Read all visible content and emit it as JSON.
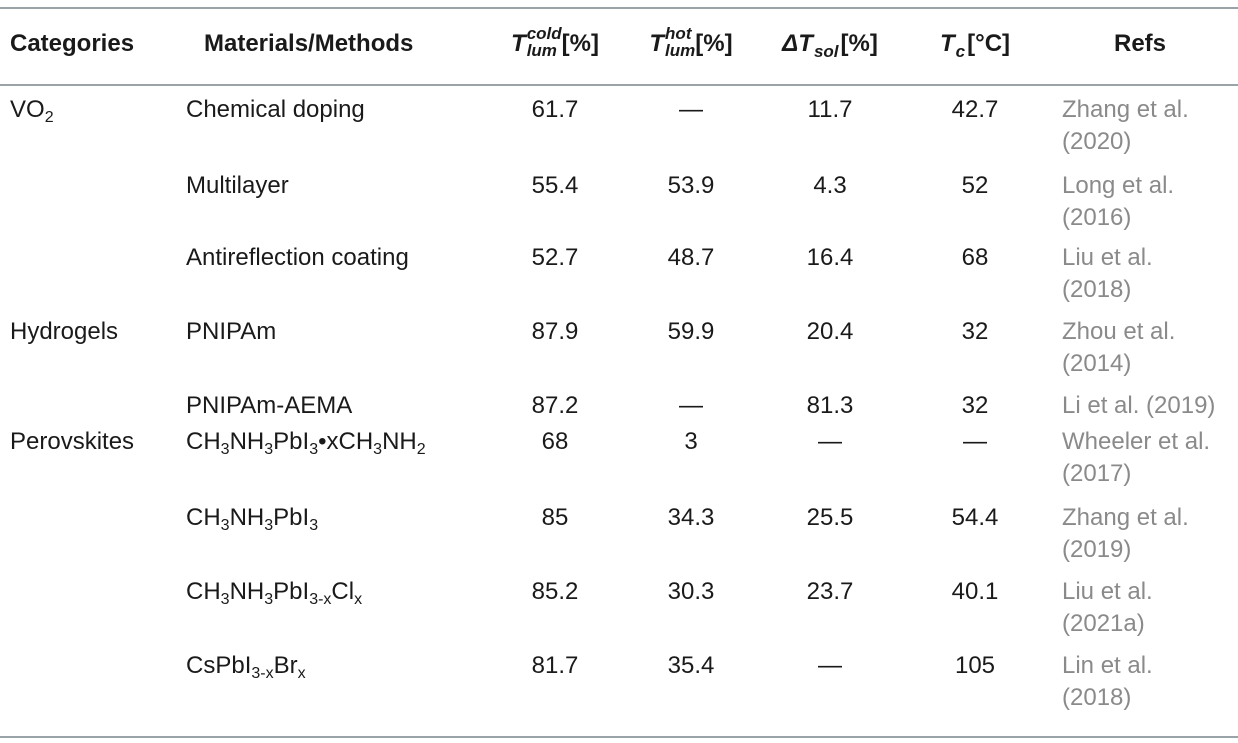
{
  "headers": {
    "categories": "Categories",
    "materials": "Materials/Methods",
    "tlum_cold": {
      "symbol": "T",
      "sup": "cold",
      "sub": "lum",
      "unit": "[%]"
    },
    "tlum_hot": {
      "symbol": "T",
      "sup": "hot",
      "sub": "lum",
      "unit": "[%]"
    },
    "dtsol": {
      "symbol": "ΔT",
      "sub": "sol",
      "unit": "[%]"
    },
    "tc": {
      "symbol": "T",
      "sub": "c",
      "unit": "[°C]"
    },
    "refs": "Refs"
  },
  "rows": [
    {
      "category": "VO₂",
      "material": "Chemical doping",
      "tlum_cold": "61.7",
      "tlum_hot": "—",
      "dtsol": "11.7",
      "tc": "42.7",
      "ref1": "Zhang et al.",
      "ref2": "(2020)"
    },
    {
      "category": "",
      "material": "Multilayer",
      "tlum_cold": "55.4",
      "tlum_hot": "53.9",
      "dtsol": "4.3",
      "tc": "52",
      "ref1": "Long et al.",
      "ref2": "(2016)"
    },
    {
      "category": "",
      "material": "Antireflection coating",
      "tlum_cold": "52.7",
      "tlum_hot": "48.7",
      "dtsol": "16.4",
      "tc": "68",
      "ref1": "Liu et al.",
      "ref2": "(2018)"
    },
    {
      "category": "Hydrogels",
      "material": "PNIPAm",
      "tlum_cold": "87.9",
      "tlum_hot": "59.9",
      "dtsol": "20.4",
      "tc": "32",
      "ref1": "Zhou et al.",
      "ref2": "(2014)"
    },
    {
      "category": "",
      "material": "PNIPAm-AEMA",
      "tlum_cold": "87.2",
      "tlum_hot": "—",
      "dtsol": "81.3",
      "tc": "32",
      "ref1": "Li et al. (2019)",
      "ref2": ""
    },
    {
      "category": "Perovskites",
      "material": "CH₃NH₃PbI₃•xCH₃NH₂",
      "tlum_cold": "68",
      "tlum_hot": "3",
      "dtsol": "—",
      "tc": "—",
      "ref1": "Wheeler et al.",
      "ref2": "(2017)"
    },
    {
      "category": "",
      "material": "CH₃NH₃PbI₃",
      "tlum_cold": "85",
      "tlum_hot": "34.3",
      "dtsol": "25.5",
      "tc": "54.4",
      "ref1": "Zhang et al.",
      "ref2": "(2019)"
    },
    {
      "category": "",
      "material": "CH₃NH₃PbI₃₋ₓClₓ",
      "tlum_cold": "85.2",
      "tlum_hot": "30.3",
      "dtsol": "23.7",
      "tc": "40.1",
      "ref1": "Liu et al.",
      "ref2": "(2021a)"
    },
    {
      "category": "",
      "material": "CsPbI₃₋ₓBrₓ",
      "tlum_cold": "81.7",
      "tlum_hot": "35.4",
      "dtsol": "—",
      "tc": "105",
      "ref1": "Lin et al.",
      "ref2": "(2018)"
    }
  ]
}
